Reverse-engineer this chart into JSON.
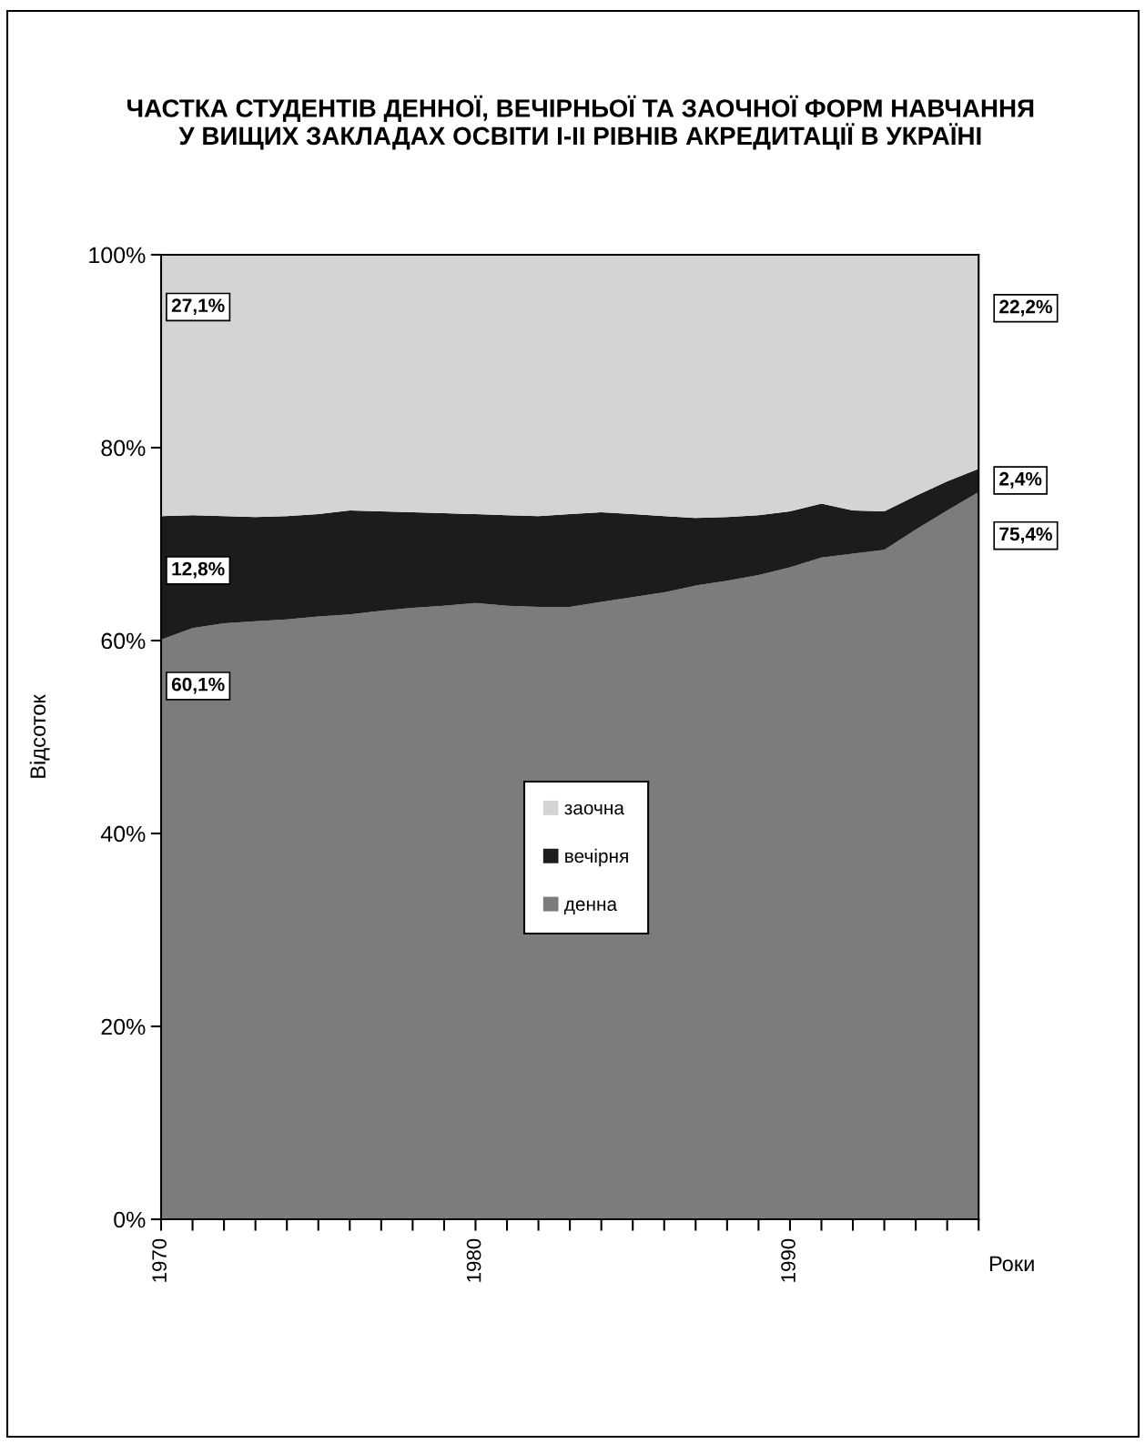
{
  "chart_data": {
    "type": "area",
    "stacked": true,
    "title": "ЧАСТКА СТУДЕНТІВ ДЕННОЇ, ВЕЧІРНЬОЇ ТА ЗАОЧНОЇ ФОРМ НАВЧАННЯ\nУ ВИЩИХ ЗАКЛАДАХ ОСВІТИ І-ІІ РІВНІВ АКРЕДИТАЦІЇ В УКРАЇНІ",
    "xlabel": "Роки",
    "ylabel": "Відсоток",
    "x": [
      1970,
      1971,
      1972,
      1973,
      1974,
      1975,
      1976,
      1977,
      1978,
      1979,
      1980,
      1981,
      1982,
      1983,
      1984,
      1985,
      1986,
      1987,
      1988,
      1989,
      1990,
      1991,
      1992,
      1993,
      1994,
      1995,
      1996
    ],
    "series": [
      {
        "name": "денна",
        "color": "#7c7c7c",
        "values": [
          60.1,
          61.3,
          61.8,
          62.0,
          62.2,
          62.5,
          62.7,
          63.1,
          63.4,
          63.6,
          63.9,
          63.6,
          63.5,
          63.5,
          64.0,
          64.5,
          65.0,
          65.7,
          66.2,
          66.8,
          67.6,
          68.6,
          69.0,
          69.4,
          71.5,
          73.5,
          75.4
        ],
        "value_labels": [
          "60,1%",
          null,
          null,
          null,
          null,
          null,
          null,
          null,
          null,
          null,
          null,
          null,
          null,
          null,
          null,
          null,
          null,
          null,
          null,
          null,
          null,
          null,
          null,
          null,
          null,
          null,
          "75,4%"
        ]
      },
      {
        "name": "вечірня",
        "color": "#1c1c1c",
        "values": [
          12.8,
          11.7,
          11.1,
          10.8,
          10.7,
          10.6,
          10.8,
          10.3,
          9.9,
          9.6,
          9.2,
          9.4,
          9.4,
          9.6,
          9.3,
          8.6,
          7.9,
          7.0,
          6.6,
          6.2,
          5.8,
          5.6,
          4.5,
          4.0,
          3.5,
          3.0,
          2.4
        ],
        "value_labels": [
          "12,8%",
          null,
          null,
          null,
          null,
          null,
          null,
          null,
          null,
          null,
          null,
          null,
          null,
          null,
          null,
          null,
          null,
          null,
          null,
          null,
          null,
          null,
          null,
          null,
          null,
          null,
          "2,4%"
        ]
      },
      {
        "name": "заочна",
        "color": "#d4d4d4",
        "values": [
          27.1,
          27.0,
          27.1,
          27.2,
          27.1,
          26.9,
          26.5,
          26.6,
          26.7,
          26.8,
          26.9,
          27.0,
          27.1,
          26.9,
          26.7,
          26.9,
          27.1,
          27.3,
          27.2,
          27.0,
          26.6,
          25.8,
          26.5,
          26.6,
          25.0,
          23.5,
          22.2
        ],
        "value_labels": [
          "27,1%",
          null,
          null,
          null,
          null,
          null,
          null,
          null,
          null,
          null,
          null,
          null,
          null,
          null,
          null,
          null,
          null,
          null,
          null,
          null,
          null,
          null,
          null,
          null,
          null,
          null,
          "22,2%"
        ]
      }
    ],
    "xlim": [
      1970,
      1996
    ],
    "xticks": [
      1970,
      {
        "value": 1971,
        "label": null
      },
      {
        "value": 1972,
        "label": null
      },
      {
        "value": 1973,
        "label": null
      },
      {
        "value": 1974,
        "label": null
      },
      {
        "value": 1975,
        "label": null
      },
      {
        "value": 1976,
        "label": null
      },
      {
        "value": 1977,
        "label": null
      },
      {
        "value": 1978,
        "label": null
      },
      {
        "value": 1979,
        "label": null
      },
      1980,
      {
        "value": 1981,
        "label": null
      },
      {
        "value": 1982,
        "label": null
      },
      {
        "value": 1983,
        "label": null
      },
      {
        "value": 1984,
        "label": null
      },
      {
        "value": 1985,
        "label": null
      },
      {
        "value": 1986,
        "label": null
      },
      {
        "value": 1987,
        "label": null
      },
      {
        "value": 1988,
        "label": null
      },
      {
        "value": 1989,
        "label": null
      },
      1990,
      {
        "value": 1991,
        "label": null
      },
      {
        "value": 1992,
        "label": null
      },
      {
        "value": 1993,
        "label": null
      },
      {
        "value": 1994,
        "label": null
      },
      {
        "value": 1995,
        "label": null
      },
      {
        "value": 1996,
        "label": null
      }
    ],
    "ylim": [
      0,
      100
    ],
    "yticks": [
      {
        "value": 0,
        "label": "0%"
      },
      {
        "value": 20,
        "label": "20%"
      },
      {
        "value": 40,
        "label": "40%"
      },
      {
        "value": 60,
        "label": "60%"
      },
      {
        "value": 80,
        "label": "80%"
      },
      {
        "value": 100,
        "label": "100%"
      }
    ],
    "legend": "center"
  }
}
